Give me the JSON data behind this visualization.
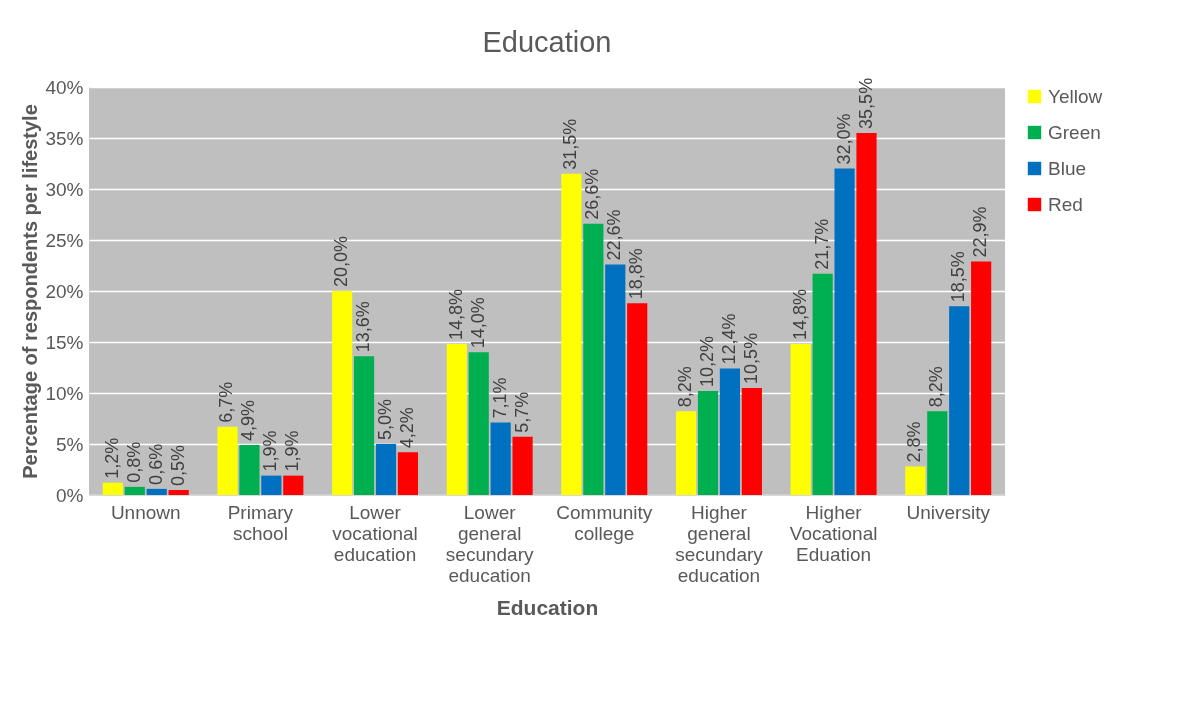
{
  "chart_data": {
    "type": "bar",
    "title": "Education",
    "xlabel": "Education",
    "ylabel": "Percentage of respondents per lifestyle",
    "categories": [
      "Unnown",
      "Primary school",
      "Lower vocational education",
      "Lower general secundary education",
      "Community college",
      "Higher general secundary education",
      "Higher Vocational Eduation",
      "University"
    ],
    "series": [
      {
        "name": "Yellow",
        "color": "#ffff00",
        "values": [
          1.2,
          6.7,
          20.0,
          14.8,
          31.5,
          8.2,
          14.8,
          2.8
        ],
        "value_labels": [
          "1,2%",
          "6,7%",
          "20,0%",
          "14,8%",
          "31,5%",
          "8,2%",
          "14,8%",
          "2,8%"
        ]
      },
      {
        "name": "Green",
        "color": "#00b050",
        "values": [
          0.8,
          4.9,
          13.6,
          14.0,
          26.6,
          10.2,
          21.7,
          8.2
        ],
        "value_labels": [
          "0,8%",
          "4,9%",
          "13,6%",
          "14,0%",
          "26,6%",
          "10,2%",
          "21,7%",
          "8,2%"
        ]
      },
      {
        "name": "Blue",
        "color": "#0070c0",
        "values": [
          0.6,
          1.9,
          5.0,
          7.1,
          22.6,
          12.4,
          32.0,
          18.5
        ],
        "value_labels": [
          "0,6%",
          "1,9%",
          "5,0%",
          "7,1%",
          "22,6%",
          "12,4%",
          "32,0%",
          "18,5%"
        ]
      },
      {
        "name": "Red",
        "color": "#ff0000",
        "values": [
          0.5,
          1.9,
          4.2,
          5.7,
          18.8,
          10.5,
          35.5,
          22.9
        ],
        "value_labels": [
          "0,5%",
          "1,9%",
          "4,2%",
          "5,7%",
          "18,8%",
          "10,5%",
          "35,5%",
          "22,9%"
        ]
      }
    ],
    "ylim": [
      0,
      40
    ],
    "yticks": [
      {
        "value": 0,
        "label": "0%"
      },
      {
        "value": 5,
        "label": "5%"
      },
      {
        "value": 10,
        "label": "10%"
      },
      {
        "value": 15,
        "label": "15%"
      },
      {
        "value": 20,
        "label": "20%"
      },
      {
        "value": 25,
        "label": "25%"
      },
      {
        "value": 30,
        "label": "30%"
      },
      {
        "value": 35,
        "label": "35%"
      },
      {
        "value": 40,
        "label": "40%"
      }
    ],
    "grid": "y",
    "legend": "right"
  }
}
